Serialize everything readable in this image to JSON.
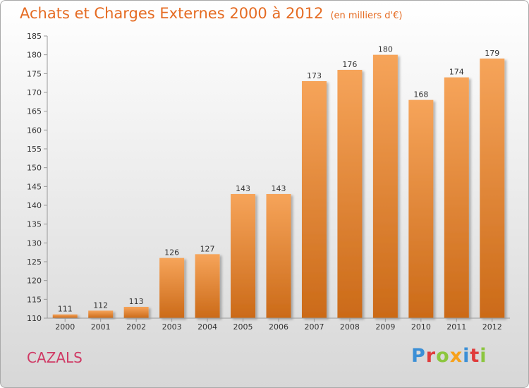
{
  "title": "Achats et Charges Externes 2000 à 2012",
  "unit": "(en milliers d'€)",
  "commune": "CAZALS",
  "logo": "Proxiti",
  "colors": {
    "bar_top": "#f6a45a",
    "bar_bottom": "#cb6a18",
    "title": "#e56b22",
    "commune": "#d03a65",
    "logo": [
      "#3b8fd6",
      "#e03c3c",
      "#8cc63f",
      "#f7a11a",
      "#3b8fd6",
      "#e03c3c",
      "#8cc63f"
    ]
  },
  "chart_data": {
    "type": "bar",
    "categories": [
      "2000",
      "2001",
      "2002",
      "2003",
      "2004",
      "2005",
      "2006",
      "2007",
      "2008",
      "2009",
      "2010",
      "2011",
      "2012"
    ],
    "values": [
      111,
      112,
      113,
      126,
      127,
      143,
      143,
      173,
      176,
      180,
      168,
      174,
      179
    ],
    "title": "Achats et Charges Externes 2000 à 2012",
    "xlabel": "",
    "ylabel": "",
    "ylim": [
      110,
      185
    ],
    "yticks": [
      110,
      115,
      120,
      125,
      130,
      135,
      140,
      145,
      150,
      155,
      160,
      165,
      170,
      175,
      180,
      185
    ],
    "grid": false,
    "data_labels": true
  }
}
